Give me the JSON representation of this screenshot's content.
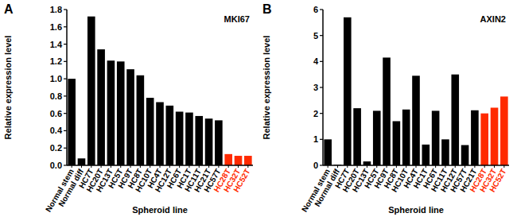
{
  "chart_data": [
    {
      "type": "bar",
      "panel_label": "A",
      "title": "MKI67",
      "y_label": "Relative expression level",
      "x_label": "Spheroid line",
      "categories": [
        "Normal stem",
        "Normal diff",
        "HC7T",
        "HC20T",
        "HC13T",
        "HC5T",
        "HC9T",
        "HC8T",
        "HC10T",
        "HC4T",
        "HC12T",
        "HC6T",
        "HC1T",
        "HC11T",
        "HC21T",
        "HC57T",
        "HC28T",
        "HC32T",
        "HC52T"
      ],
      "values": [
        1.0,
        0.08,
        1.72,
        1.34,
        1.21,
        1.2,
        1.11,
        1.04,
        0.78,
        0.73,
        0.69,
        0.62,
        0.61,
        0.57,
        0.54,
        0.52,
        0.13,
        0.11,
        0.11
      ],
      "colors": [
        "#000000",
        "#000000",
        "#000000",
        "#000000",
        "#000000",
        "#000000",
        "#000000",
        "#000000",
        "#000000",
        "#000000",
        "#000000",
        "#000000",
        "#000000",
        "#000000",
        "#000000",
        "#000000",
        "#ff2a00",
        "#ff2a00",
        "#ff2a00"
      ],
      "ylim": [
        0,
        1.8
      ],
      "yticks": [
        {
          "value": 0,
          "label": "0.0"
        },
        {
          "value": 0.2,
          "label": "0.2"
        },
        {
          "value": 0.4,
          "label": "0.4"
        },
        {
          "value": 0.6,
          "label": "0.6"
        },
        {
          "value": 0.8,
          "label": "0.8"
        },
        {
          "value": 1,
          "label": "1.0"
        },
        {
          "value": 1.2,
          "label": "1.2"
        },
        {
          "value": 1.4,
          "label": "1.4"
        },
        {
          "value": 1.6,
          "label": "1.6"
        },
        {
          "value": 1.8,
          "label": "1.8"
        }
      ],
      "grid": false
    },
    {
      "type": "bar",
      "panel_label": "B",
      "title": "AXIN2",
      "y_label": "Relative expression level",
      "x_label": "Spheroid line",
      "categories": [
        "Normal stem",
        "Normal diff",
        "HC7T",
        "HC20T",
        "HC13T",
        "HC5T",
        "HC9T",
        "HC8T",
        "HC10T",
        "HC4T",
        "HC1T",
        "HC6T",
        "HC11T",
        "HC12T",
        "HC57T",
        "HC21T",
        "HC28T",
        "HC32T",
        "HC52T"
      ],
      "values": [
        1.0,
        0.02,
        5.7,
        2.2,
        0.15,
        2.1,
        4.15,
        1.7,
        2.15,
        3.45,
        0.8,
        2.1,
        1.0,
        3.5,
        0.78,
        2.12,
        2.0,
        2.22,
        2.65
      ],
      "colors": [
        "#000000",
        "#000000",
        "#000000",
        "#000000",
        "#000000",
        "#000000",
        "#000000",
        "#000000",
        "#000000",
        "#000000",
        "#000000",
        "#000000",
        "#000000",
        "#000000",
        "#000000",
        "#000000",
        "#ff2a00",
        "#ff2a00",
        "#ff2a00"
      ],
      "ylim": [
        0,
        6
      ],
      "yticks": [
        0,
        1,
        2,
        3,
        4,
        5,
        6
      ],
      "grid": false
    }
  ]
}
